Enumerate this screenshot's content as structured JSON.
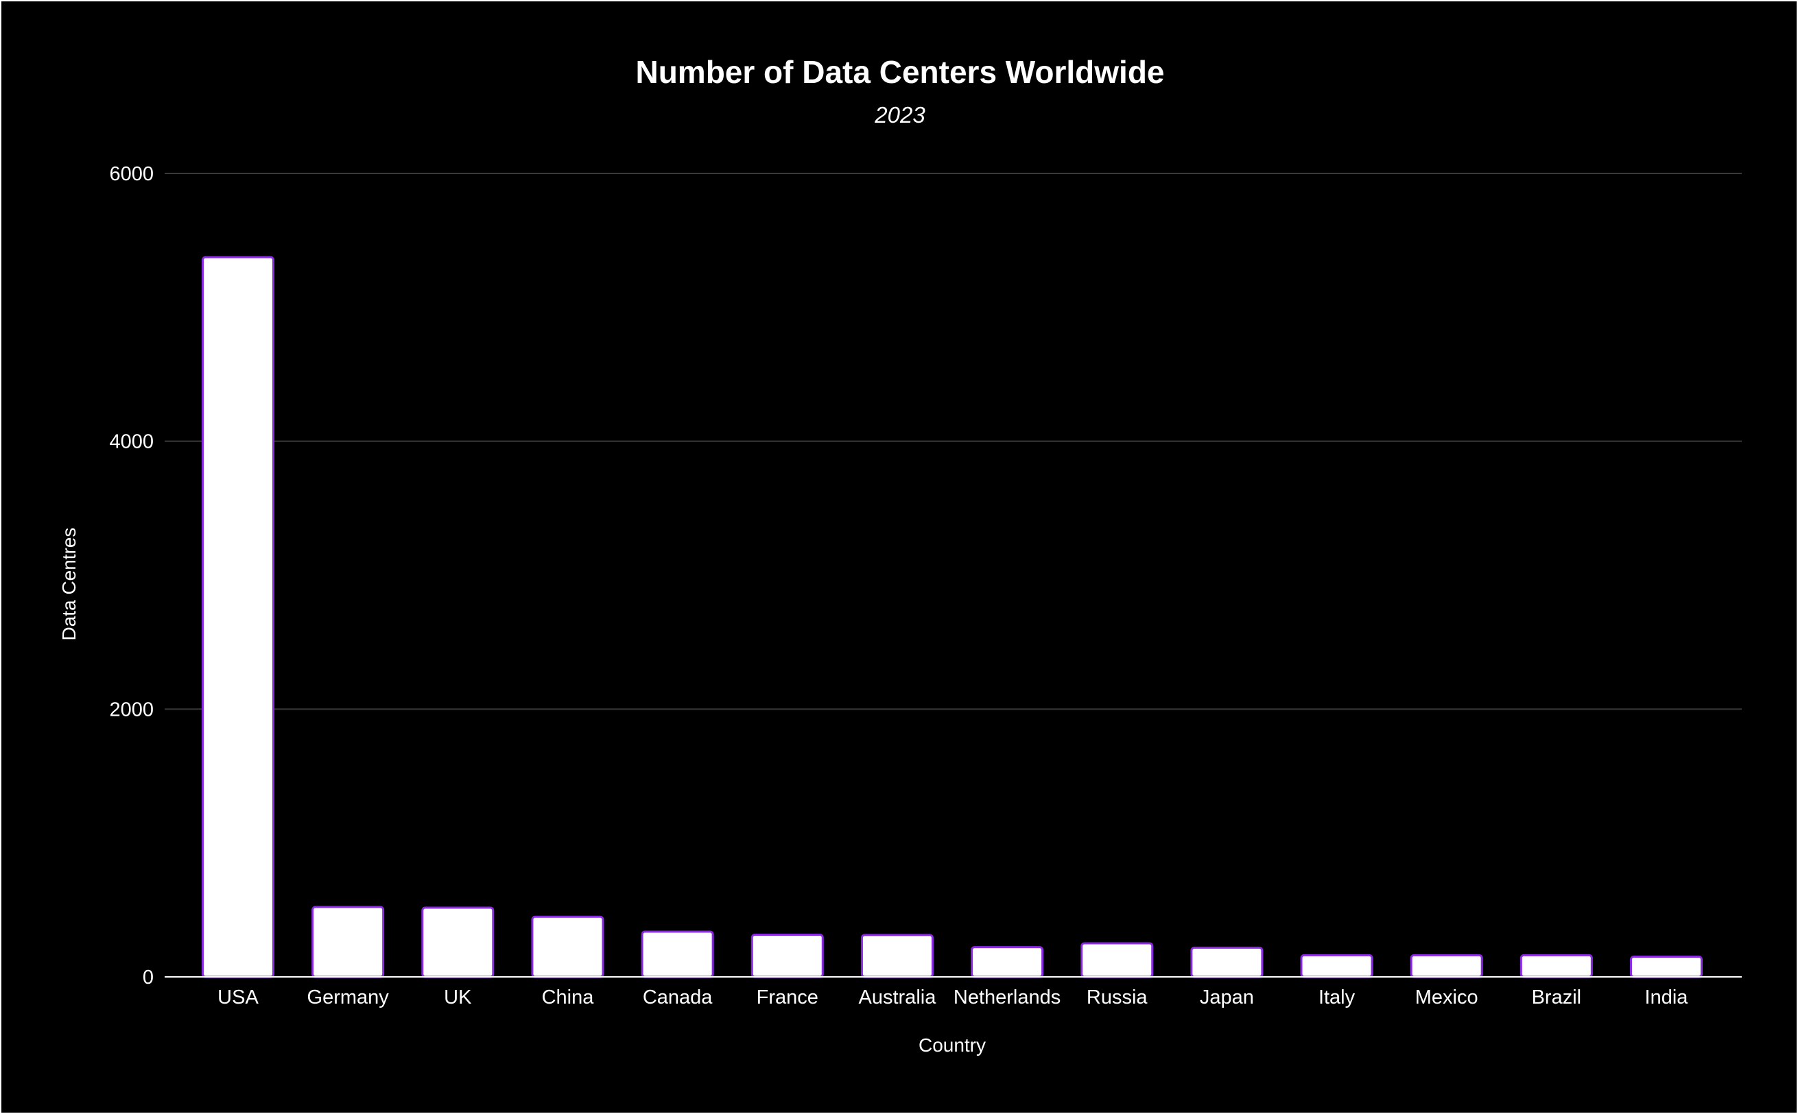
{
  "chart_data": {
    "type": "bar",
    "title": "Number of Data Centers Worldwide",
    "subtitle": "2023",
    "xlabel": "Country",
    "ylabel": "Data Centres",
    "categories": [
      "USA",
      "Germany",
      "UK",
      "China",
      "Canada",
      "France",
      "Australia",
      "Netherlands",
      "Russia",
      "Japan",
      "Italy",
      "Mexico",
      "Brazil",
      "India"
    ],
    "values": [
      5375,
      522,
      517,
      449,
      338,
      315,
      313,
      222,
      251,
      218,
      162,
      162,
      162,
      151
    ],
    "ylim": [
      0,
      6000
    ],
    "yticks": [
      "0",
      "2000",
      "4000",
      "6000"
    ],
    "grid": true,
    "legend": "none",
    "colors": {
      "background": "#000000",
      "bar_fill": "#ffffff",
      "bar_stroke": "#8a2be2",
      "text": "#ffffff",
      "grid": "#3a3a3a"
    }
  }
}
